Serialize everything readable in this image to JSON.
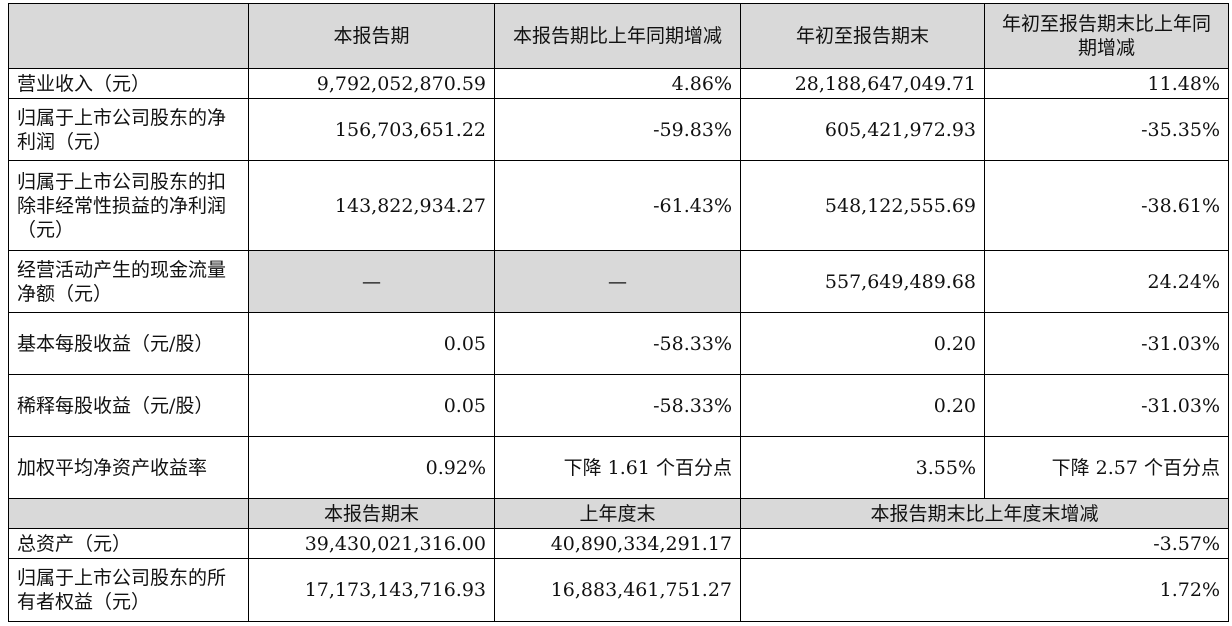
{
  "headers": {
    "row1": [
      "",
      "本报告期",
      "本报告期比上年同期增减",
      "年初至报告期末",
      "年初至报告期末比上年同期增减"
    ],
    "row2": [
      "",
      "本报告期末",
      "上年度末",
      "本报告期末比上年度末增减"
    ]
  },
  "rows_a": [
    {
      "label": "营业收入（元）",
      "cells": [
        "9,792,052,870.59",
        "4.86%",
        "28,188,647,049.71",
        "11.48%"
      ]
    },
    {
      "label": "归属于上市公司股东的净利润（元）",
      "cells": [
        "156,703,651.22",
        "-59.83%",
        "605,421,972.93",
        "-35.35%"
      ]
    },
    {
      "label": "归属于上市公司股东的扣除非经常性损益的净利润（元）",
      "cells": [
        "143,822,934.27",
        "-61.43%",
        "548,122,555.69",
        "-38.61%"
      ]
    },
    {
      "label": "经营活动产生的现金流量净额（元）",
      "cells": [
        "—",
        "—",
        "557,649,489.68",
        "24.24%"
      ]
    },
    {
      "label": "基本每股收益（元/股）",
      "cells": [
        "0.05",
        "-58.33%",
        "0.20",
        "-31.03%"
      ]
    },
    {
      "label": "稀释每股收益（元/股）",
      "cells": [
        "0.05",
        "-58.33%",
        "0.20",
        "-31.03%"
      ]
    },
    {
      "label": "加权平均净资产收益率",
      "cells": [
        "0.92%",
        "下降 1.61 个百分点",
        "3.55%",
        "下降 2.57 个百分点"
      ]
    }
  ],
  "rows_b": [
    {
      "label": "总资产（元）",
      "cells": [
        "39,430,021,316.00",
        "40,890,334,291.17",
        "-3.57%"
      ]
    },
    {
      "label": "归属于上市公司股东的所有者权益（元）",
      "cells": [
        "17,173,143,716.93",
        "16,883,461,751.27",
        "1.72%"
      ]
    }
  ]
}
